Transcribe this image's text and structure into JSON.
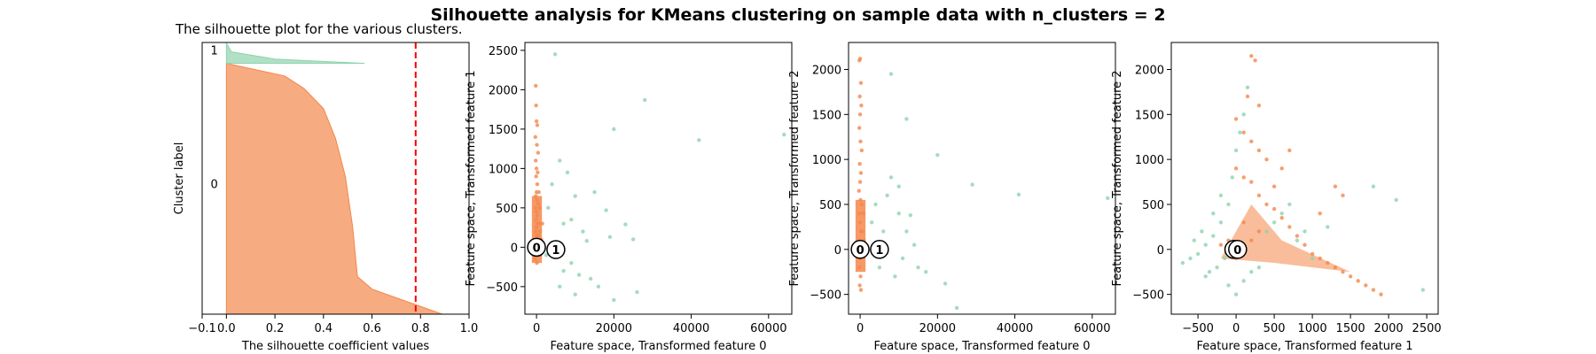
{
  "figure": {
    "suptitle": "Silhouette analysis for KMeans clustering on sample data with n_clusters = 2"
  },
  "colors": {
    "cluster_0": "#f4874b",
    "cluster_1": "#8fd3ae",
    "avg_line": "#ff0000"
  },
  "chart_data": [
    {
      "type": "area",
      "title": "The silhouette plot for the various clusters.",
      "xlabel": "The silhouette coefficient values",
      "ylabel": "Cluster label",
      "xlim": [
        -0.1,
        1.0
      ],
      "xticks": [
        -0.1,
        0.0,
        0.2,
        0.4,
        0.6,
        0.8,
        1.0
      ],
      "xtick_labels": [
        "−0.1",
        "0.0",
        "0.2",
        "0.4",
        "0.6",
        "0.8",
        "1.0"
      ],
      "yticks": [],
      "silhouette_avg": 0.78,
      "clusters": [
        {
          "label": "0",
          "color": "#f4874b",
          "profile": [
            [
              0,
              0.0
            ],
            [
              0.05,
              0.24
            ],
            [
              0.1,
              0.32
            ],
            [
              0.18,
              0.4
            ],
            [
              0.3,
              0.45
            ],
            [
              0.45,
              0.49
            ],
            [
              0.65,
              0.52
            ],
            [
              0.85,
              0.54
            ],
            [
              0.9,
              0.6
            ],
            [
              1.0,
              0.89
            ]
          ]
        },
        {
          "label": "1",
          "color": "#8fd3ae",
          "profile": [
            [
              0,
              -0.05
            ],
            [
              0.3,
              0.0
            ],
            [
              0.6,
              0.02
            ],
            [
              0.85,
              0.2
            ],
            [
              1.0,
              0.57
            ]
          ]
        }
      ]
    },
    {
      "type": "scatter",
      "xlabel": "Feature space, Transformed feature 0",
      "ylabel": "Feature space, Transformed feature 1",
      "xlim": [
        -3000,
        66000
      ],
      "ylim": [
        -850,
        2600
      ],
      "xticks": [
        0,
        20000,
        40000,
        60000
      ],
      "yticks": [
        -500,
        0,
        500,
        1000,
        1500,
        2000,
        2500
      ],
      "centers": [
        {
          "label": "0",
          "x": 0,
          "y": 0
        },
        {
          "label": "1",
          "x": 5000,
          "y": -30
        }
      ],
      "series": [
        {
          "color": "#8fd3ae",
          "points": [
            [
              4800,
              2450
            ],
            [
              28000,
              1870
            ],
            [
              42000,
              1360
            ],
            [
              20000,
              1500
            ],
            [
              64000,
              1430
            ],
            [
              23000,
              290
            ],
            [
              19000,
              130
            ],
            [
              18000,
              470
            ],
            [
              25000,
              100
            ],
            [
              26000,
              -570
            ],
            [
              20000,
              -670
            ],
            [
              15000,
              700
            ],
            [
              10000,
              650
            ],
            [
              8000,
              950
            ],
            [
              6000,
              1100
            ],
            [
              12000,
              200
            ],
            [
              9000,
              -200
            ],
            [
              14000,
              -400
            ],
            [
              16000,
              -500
            ],
            [
              11000,
              -350
            ],
            [
              7000,
              300
            ],
            [
              5000,
              -100
            ],
            [
              3000,
              500
            ],
            [
              4000,
              800
            ],
            [
              2500,
              -100
            ],
            [
              9000,
              350
            ],
            [
              13000,
              80
            ],
            [
              6000,
              -500
            ],
            [
              7000,
              -300
            ],
            [
              10000,
              -600
            ]
          ]
        },
        {
          "color": "#f4874b",
          "points": [
            [
              -200,
              2050
            ],
            [
              -100,
              1800
            ],
            [
              0,
              1600
            ],
            [
              200,
              1550
            ],
            [
              -300,
              1400
            ],
            [
              100,
              1300
            ],
            [
              400,
              1200
            ],
            [
              -200,
              1100
            ],
            [
              0,
              1000
            ],
            [
              300,
              950
            ],
            [
              -100,
              900
            ],
            [
              200,
              800
            ],
            [
              0,
              700
            ],
            [
              -200,
              650
            ],
            [
              100,
              600
            ],
            [
              400,
              550
            ],
            [
              -300,
              500
            ],
            [
              0,
              450
            ],
            [
              200,
              400
            ],
            [
              -100,
              350
            ],
            [
              300,
              300
            ],
            [
              0,
              250
            ],
            [
              -200,
              200
            ],
            [
              100,
              150
            ],
            [
              400,
              100
            ],
            [
              -100,
              50
            ],
            [
              200,
              -50
            ],
            [
              0,
              -100
            ],
            [
              -300,
              -150
            ],
            [
              100,
              -200
            ],
            [
              500,
              150
            ],
            [
              700,
              300
            ],
            [
              800,
              500
            ],
            [
              600,
              700
            ],
            [
              900,
              200
            ],
            [
              1200,
              100
            ],
            [
              1500,
              300
            ],
            [
              1000,
              -100
            ]
          ]
        }
      ]
    },
    {
      "type": "scatter",
      "xlabel": "Feature space, Transformed feature 0",
      "ylabel": "Feature space, Transformed feature 2",
      "xlim": [
        -3000,
        66000
      ],
      "ylim": [
        -720,
        2300
      ],
      "xticks": [
        0,
        20000,
        40000,
        60000
      ],
      "yticks": [
        -500,
        0,
        500,
        1000,
        1500,
        2000
      ],
      "centers": [
        {
          "label": "0",
          "x": 0,
          "y": 0
        },
        {
          "label": "1",
          "x": 5000,
          "y": 0
        }
      ],
      "series": [
        {
          "color": "#8fd3ae",
          "points": [
            [
              8000,
              1950
            ],
            [
              12000,
              1450
            ],
            [
              20000,
              1050
            ],
            [
              29000,
              720
            ],
            [
              41000,
              610
            ],
            [
              64000,
              570
            ],
            [
              13000,
              380
            ],
            [
              14000,
              50
            ],
            [
              22000,
              -380
            ],
            [
              25000,
              -650
            ],
            [
              8000,
              800
            ],
            [
              7000,
              600
            ],
            [
              10000,
              400
            ],
            [
              11000,
              -100
            ],
            [
              6000,
              200
            ],
            [
              5000,
              -200
            ],
            [
              15000,
              -200
            ],
            [
              17000,
              -250
            ],
            [
              9000,
              -300
            ],
            [
              12000,
              200
            ],
            [
              4000,
              500
            ],
            [
              3000,
              300
            ],
            [
              10000,
              700
            ]
          ]
        },
        {
          "color": "#f4874b",
          "points": [
            [
              0,
              2120
            ],
            [
              -200,
              2100
            ],
            [
              200,
              1850
            ],
            [
              -100,
              1700
            ],
            [
              300,
              1600
            ],
            [
              0,
              1500
            ],
            [
              -200,
              1350
            ],
            [
              100,
              1200
            ],
            [
              400,
              1100
            ],
            [
              -100,
              950
            ],
            [
              200,
              850
            ],
            [
              0,
              750
            ],
            [
              -300,
              650
            ],
            [
              100,
              550
            ],
            [
              400,
              500
            ],
            [
              -200,
              400
            ],
            [
              0,
              300
            ],
            [
              200,
              200
            ],
            [
              -100,
              100
            ],
            [
              300,
              50
            ],
            [
              0,
              -100
            ],
            [
              -200,
              -200
            ],
            [
              100,
              -300
            ],
            [
              -100,
              -400
            ],
            [
              200,
              -450
            ],
            [
              600,
              200
            ],
            [
              800,
              400
            ],
            [
              1000,
              100
            ]
          ]
        }
      ]
    },
    {
      "type": "scatter",
      "xlabel": "Feature space, Transformed feature 1",
      "ylabel": "Feature space, Transformed feature 2",
      "xlim": [
        -850,
        2650
      ],
      "ylim": [
        -720,
        2300
      ],
      "xticks": [
        -500,
        0,
        500,
        1000,
        1500,
        2000,
        2500
      ],
      "yticks": [
        -500,
        0,
        500,
        1000,
        1500,
        2000
      ],
      "centers": [
        {
          "label": "1",
          "x": -30,
          "y": 0
        },
        {
          "label": "0",
          "x": 20,
          "y": 0
        }
      ],
      "series": [
        {
          "color": "#8fd3ae",
          "points": [
            [
              -700,
              -150
            ],
            [
              -600,
              -100
            ],
            [
              -500,
              -50
            ],
            [
              -400,
              50
            ],
            [
              -300,
              150
            ],
            [
              -250,
              -200
            ],
            [
              -200,
              300
            ],
            [
              -150,
              -100
            ],
            [
              -100,
              500
            ],
            [
              -50,
              800
            ],
            [
              0,
              1100
            ],
            [
              50,
              1300
            ],
            [
              100,
              1500
            ],
            [
              150,
              1800
            ],
            [
              -100,
              -400
            ],
            [
              0,
              -500
            ],
            [
              100,
              -350
            ],
            [
              200,
              -250
            ],
            [
              300,
              -200
            ],
            [
              400,
              200
            ],
            [
              500,
              300
            ],
            [
              600,
              400
            ],
            [
              700,
              500
            ],
            [
              800,
              100
            ],
            [
              900,
              200
            ],
            [
              -350,
              -250
            ],
            [
              -450,
              200
            ],
            [
              -200,
              600
            ],
            [
              -300,
              400
            ],
            [
              -400,
              -300
            ],
            [
              1800,
              700
            ],
            [
              2100,
              550
            ],
            [
              2450,
              -450
            ],
            [
              1200,
              250
            ],
            [
              1000,
              -100
            ],
            [
              -550,
              100
            ]
          ]
        },
        {
          "color": "#f4874b",
          "points": [
            [
              200,
              2150
            ],
            [
              250,
              2100
            ],
            [
              150,
              1700
            ],
            [
              300,
              1600
            ],
            [
              0,
              1450
            ],
            [
              100,
              1300
            ],
            [
              200,
              1200
            ],
            [
              300,
              1100
            ],
            [
              400,
              1000
            ],
            [
              0,
              900
            ],
            [
              100,
              800
            ],
            [
              200,
              750
            ],
            [
              300,
              600
            ],
            [
              400,
              500
            ],
            [
              500,
              450
            ],
            [
              600,
              350
            ],
            [
              700,
              250
            ],
            [
              800,
              150
            ],
            [
              900,
              50
            ],
            [
              1000,
              -50
            ],
            [
              1100,
              -100
            ],
            [
              1200,
              -150
            ],
            [
              1300,
              -200
            ],
            [
              1400,
              -250
            ],
            [
              1500,
              -300
            ],
            [
              1600,
              -350
            ],
            [
              1700,
              -400
            ],
            [
              1800,
              -450
            ],
            [
              1900,
              -500
            ],
            [
              100,
              300
            ],
            [
              200,
              100
            ],
            [
              300,
              200
            ],
            [
              -100,
              100
            ],
            [
              -200,
              50
            ],
            [
              0,
              -100
            ],
            [
              500,
              700
            ],
            [
              600,
              900
            ],
            [
              700,
              1100
            ],
            [
              1400,
              600
            ],
            [
              1300,
              700
            ],
            [
              1100,
              400
            ]
          ]
        }
      ]
    }
  ]
}
